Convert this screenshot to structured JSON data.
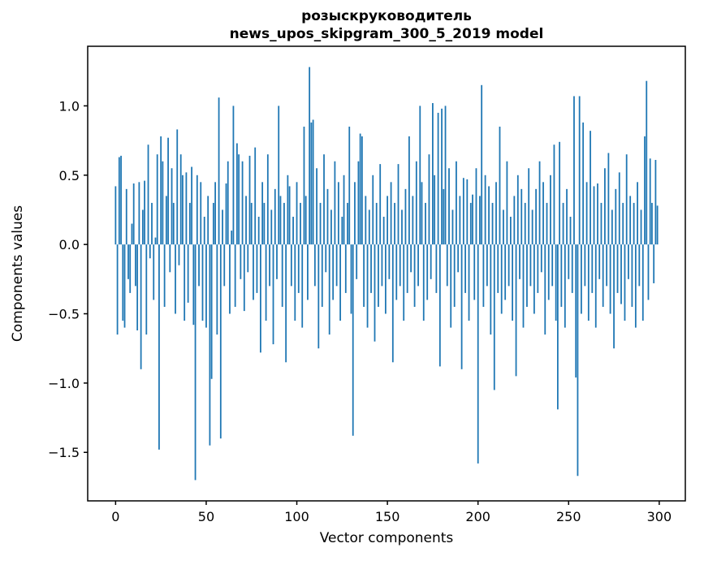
{
  "figure": {
    "background": "#ffffff",
    "frame_color": "#000000"
  },
  "chart_data": {
    "type": "bar",
    "title": "розыскруководитель",
    "subtitle": "news_upos_skipgram_300_5_2019 model",
    "xlabel": "Vector components",
    "ylabel": "Components values",
    "bar_color": "#1f77b4",
    "bar_width": 0.8,
    "xlim": [
      -15.4,
      314.4
    ],
    "ylim": [
      -1.85,
      1.43
    ],
    "grid": false,
    "legend": null,
    "x_ticks": [
      0,
      50,
      100,
      150,
      200,
      250,
      300
    ],
    "x_tick_labels": [
      "0",
      "50",
      "100",
      "150",
      "200",
      "250",
      "300"
    ],
    "y_ticks": [
      1.0,
      0.5,
      0.0,
      -0.5,
      -1.0,
      -1.5
    ],
    "y_tick_labels": [
      "1.0",
      "0.5",
      "0.0",
      "−0.5",
      "−1.0",
      "−1.5"
    ],
    "values": [
      0.42,
      -0.65,
      0.63,
      0.64,
      -0.55,
      -0.6,
      0.4,
      -0.25,
      -0.35,
      0.15,
      0.44,
      -0.3,
      -0.62,
      0.45,
      -0.9,
      0.25,
      0.46,
      -0.65,
      0.72,
      -0.1,
      0.3,
      -0.4,
      0.05,
      0.65,
      -1.48,
      0.78,
      0.6,
      -0.45,
      0.35,
      0.77,
      -0.2,
      0.55,
      0.3,
      -0.5,
      0.83,
      -0.15,
      0.65,
      0.5,
      -0.55,
      0.52,
      -0.42,
      0.3,
      0.56,
      -0.58,
      -1.7,
      0.5,
      -0.3,
      0.45,
      -0.55,
      0.2,
      -0.6,
      0.35,
      -1.45,
      -0.97,
      0.3,
      0.45,
      -0.65,
      1.06,
      -1.4,
      0.25,
      -0.3,
      0.44,
      0.6,
      -0.5,
      0.1,
      1.0,
      -0.45,
      0.73,
      0.65,
      -0.25,
      0.6,
      -0.48,
      0.35,
      -0.2,
      0.64,
      0.3,
      -0.4,
      0.7,
      -0.35,
      0.2,
      -0.78,
      0.45,
      0.3,
      -0.55,
      0.65,
      -0.3,
      0.25,
      -0.72,
      0.4,
      -0.25,
      1.0,
      0.35,
      -0.45,
      0.3,
      -0.85,
      0.5,
      0.42,
      -0.3,
      0.2,
      -0.55,
      0.45,
      -0.35,
      0.3,
      -0.6,
      0.85,
      0.35,
      -0.4,
      1.28,
      0.88,
      0.9,
      -0.3,
      0.55,
      -0.75,
      0.3,
      -0.45,
      0.65,
      -0.2,
      0.4,
      -0.65,
      0.25,
      -0.4,
      0.6,
      -0.3,
      0.45,
      -0.55,
      0.2,
      0.5,
      -0.35,
      0.3,
      0.85,
      -0.5,
      -1.38,
      0.45,
      -0.25,
      0.6,
      0.8,
      0.78,
      -0.45,
      0.35,
      -0.6,
      0.25,
      -0.35,
      0.5,
      -0.7,
      0.3,
      -0.45,
      0.58,
      -0.3,
      0.2,
      -0.5,
      0.35,
      -0.25,
      0.45,
      -0.85,
      0.3,
      -0.4,
      0.58,
      -0.3,
      0.25,
      -0.55,
      0.4,
      -0.35,
      0.78,
      -0.2,
      0.35,
      -0.45,
      0.6,
      -0.3,
      1.0,
      0.45,
      -0.55,
      0.3,
      -0.4,
      0.65,
      -0.25,
      1.02,
      0.5,
      -0.35,
      0.95,
      -0.88,
      0.98,
      0.4,
      1.0,
      -0.3,
      0.55,
      -0.6,
      0.25,
      -0.45,
      0.6,
      -0.2,
      0.35,
      -0.9,
      0.48,
      -0.35,
      0.47,
      -0.55,
      0.3,
      0.36,
      -0.4,
      0.55,
      -1.58,
      0.35,
      1.15,
      -0.45,
      0.5,
      -0.3,
      0.42,
      -0.65,
      0.3,
      -1.05,
      0.45,
      -0.35,
      0.85,
      -0.5,
      0.25,
      -0.4,
      0.6,
      -0.3,
      0.2,
      -0.55,
      0.35,
      -0.95,
      0.5,
      -0.25,
      0.4,
      -0.6,
      0.3,
      -0.45,
      0.55,
      -0.3,
      0.25,
      -0.5,
      0.4,
      -0.35,
      0.6,
      -0.2,
      0.45,
      -0.65,
      0.3,
      -0.4,
      0.5,
      -0.3,
      0.72,
      -0.55,
      -1.19,
      0.74,
      -0.45,
      0.3,
      -0.6,
      0.4,
      -0.25,
      0.2,
      -0.35,
      1.07,
      -0.96,
      -1.67,
      1.07,
      -0.5,
      0.88,
      -0.3,
      0.45,
      -0.55,
      0.82,
      -0.35,
      0.42,
      -0.6,
      0.44,
      -0.25,
      0.3,
      -0.45,
      0.55,
      -0.3,
      0.66,
      -0.5,
      0.25,
      -0.75,
      0.4,
      -0.35,
      0.52,
      -0.43,
      0.3,
      -0.55,
      0.65,
      -0.25,
      0.35,
      -0.45,
      0.3,
      -0.6,
      0.45,
      -0.3,
      0.25,
      -0.55,
      0.78,
      1.18,
      -0.4,
      0.62,
      0.3,
      -0.28,
      0.61,
      0.28
    ]
  }
}
